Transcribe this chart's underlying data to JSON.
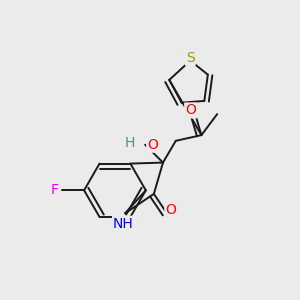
{
  "background_color": "#ebebeb",
  "bond_color": "#1a1a1a",
  "atom_colors": {
    "S": "#9a9a00",
    "O": "#ff0000",
    "N": "#0000ee",
    "F": "#ee00ee",
    "H": "#4a9090",
    "C": "#1a1a1a"
  },
  "figsize": [
    3.0,
    3.0
  ],
  "dpi": 100
}
